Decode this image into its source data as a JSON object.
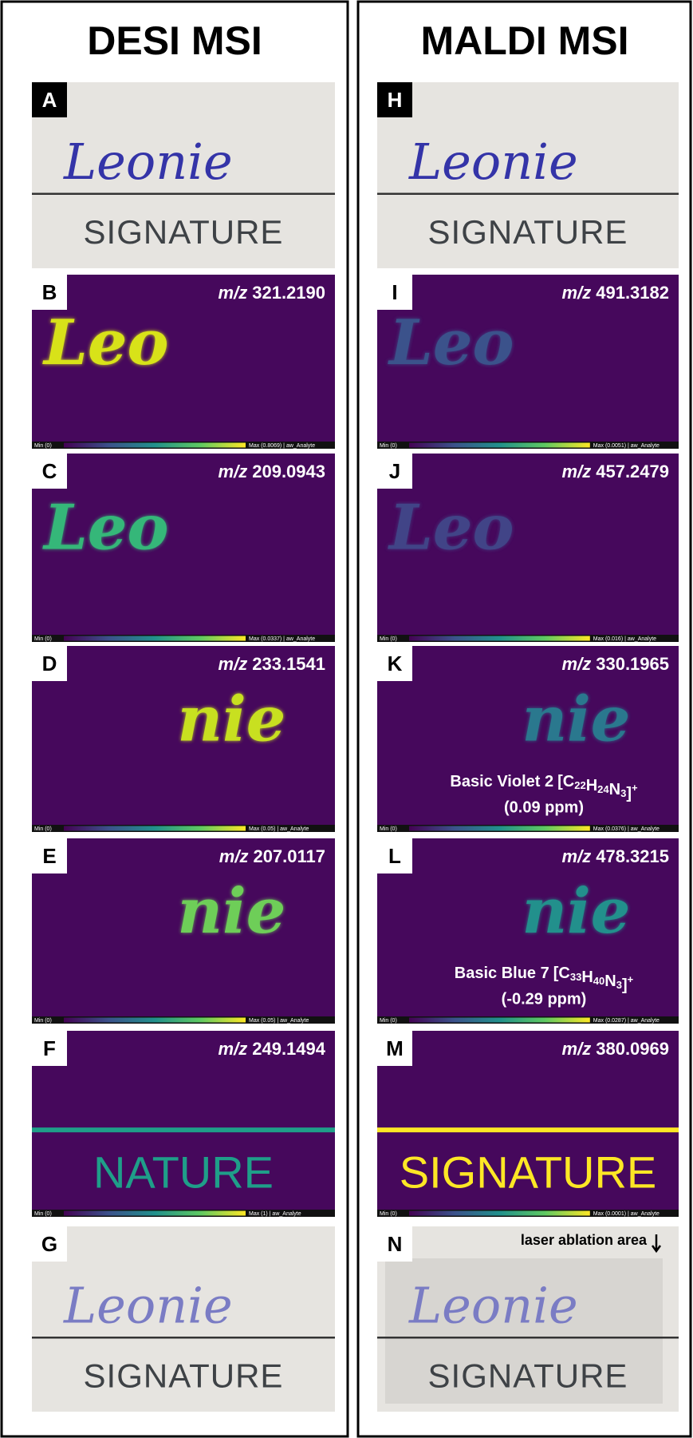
{
  "columns": [
    {
      "title": "DESI MSI",
      "panels": [
        {
          "letter": "A",
          "kind": "photo",
          "handwriting": "Leonie",
          "caption": "SIGNATURE"
        },
        {
          "letter": "B",
          "kind": "msi",
          "mz_prefix": "m/z",
          "mz": "321.2190",
          "handwriting": "Leo",
          "align": "left",
          "ink": "#d8e219",
          "colorbar_min": "Min (0)",
          "colorbar_max": "Max (0.8069) | aw_Analyte"
        },
        {
          "letter": "C",
          "kind": "msi",
          "mz_prefix": "m/z",
          "mz": "209.0943",
          "handwriting": "Leo",
          "align": "left",
          "ink": "#35b779",
          "colorbar_min": "Min (0)",
          "colorbar_max": "Max (0.0337) | aw_Analyte"
        },
        {
          "letter": "D",
          "kind": "msi",
          "mz_prefix": "m/z",
          "mz": "233.1541",
          "handwriting": "nie",
          "align": "right",
          "ink": "#c8e020",
          "colorbar_min": "Min (0)",
          "colorbar_max": "Max (0.05) | aw_Analyte"
        },
        {
          "letter": "E",
          "kind": "msi",
          "mz_prefix": "m/z",
          "mz": "207.0117",
          "handwriting": "nie",
          "align": "right",
          "ink": "#6ece58",
          "colorbar_min": "Min (0)",
          "colorbar_max": "Max (0.05) | aw_Analyte"
        },
        {
          "letter": "F",
          "kind": "msi",
          "mz_prefix": "m/z",
          "mz": "249.1494",
          "caption": "NATURE",
          "ink": "#1f9e89",
          "colorbar_min": "Min (0)",
          "colorbar_max": "Max (1) | aw_Analyte"
        },
        {
          "letter": "G",
          "kind": "photo",
          "handwriting": "Leonie",
          "caption": "SIGNATURE"
        }
      ]
    },
    {
      "title": "MALDI MSI",
      "panels": [
        {
          "letter": "H",
          "kind": "photo",
          "handwriting": "Leonie",
          "caption": "SIGNATURE"
        },
        {
          "letter": "I",
          "kind": "msi",
          "mz_prefix": "m/z",
          "mz": "491.3182",
          "handwriting": "Leo",
          "align": "left",
          "ink": "#3b528b",
          "colorbar_min": "Min (0)",
          "colorbar_max": "Max (0.0051) | aw_Analyte"
        },
        {
          "letter": "J",
          "kind": "msi",
          "mz_prefix": "m/z",
          "mz": "457.2479",
          "handwriting": "Leo",
          "align": "left",
          "ink": "#414487",
          "colorbar_min": "Min (0)",
          "colorbar_max": "Max (0.016) | aw_Analyte"
        },
        {
          "letter": "K",
          "kind": "msi",
          "mz_prefix": "m/z",
          "mz": "330.1965",
          "handwriting": "nie",
          "align": "right",
          "ink": "#2a788e",
          "compound": "Basic Violet 2",
          "formula": [
            [
              "C",
              "22"
            ],
            [
              "H",
              "24"
            ],
            [
              "N",
              "3"
            ]
          ],
          "charge": "+",
          "ppm": "(0.09 ppm)",
          "colorbar_min": "Min (0)",
          "colorbar_max": "Max (0.0376) | aw_Analyte"
        },
        {
          "letter": "L",
          "kind": "msi",
          "mz_prefix": "m/z",
          "mz": "478.3215",
          "handwriting": "nie",
          "align": "right",
          "ink": "#22908c",
          "compound": "Basic Blue 7",
          "formula": [
            [
              "C",
              "33"
            ],
            [
              "H",
              "40"
            ],
            [
              "N",
              "3"
            ]
          ],
          "charge": "+",
          "ppm": "(-0.29 ppm)",
          "colorbar_min": "Min (0)",
          "colorbar_max": "Max (0.0287) | aw_Analyte"
        },
        {
          "letter": "M",
          "kind": "msi",
          "mz_prefix": "m/z",
          "mz": "380.0969",
          "caption": "SIGNATURE",
          "ink": "#fde725",
          "colorbar_min": "Min (0)",
          "colorbar_max": "Max (0.0001) | aw_Analyte"
        },
        {
          "letter": "N",
          "kind": "photo",
          "handwriting": "Leonie",
          "caption": "SIGNATURE",
          "annotation": "laser ablation area"
        }
      ]
    }
  ]
}
